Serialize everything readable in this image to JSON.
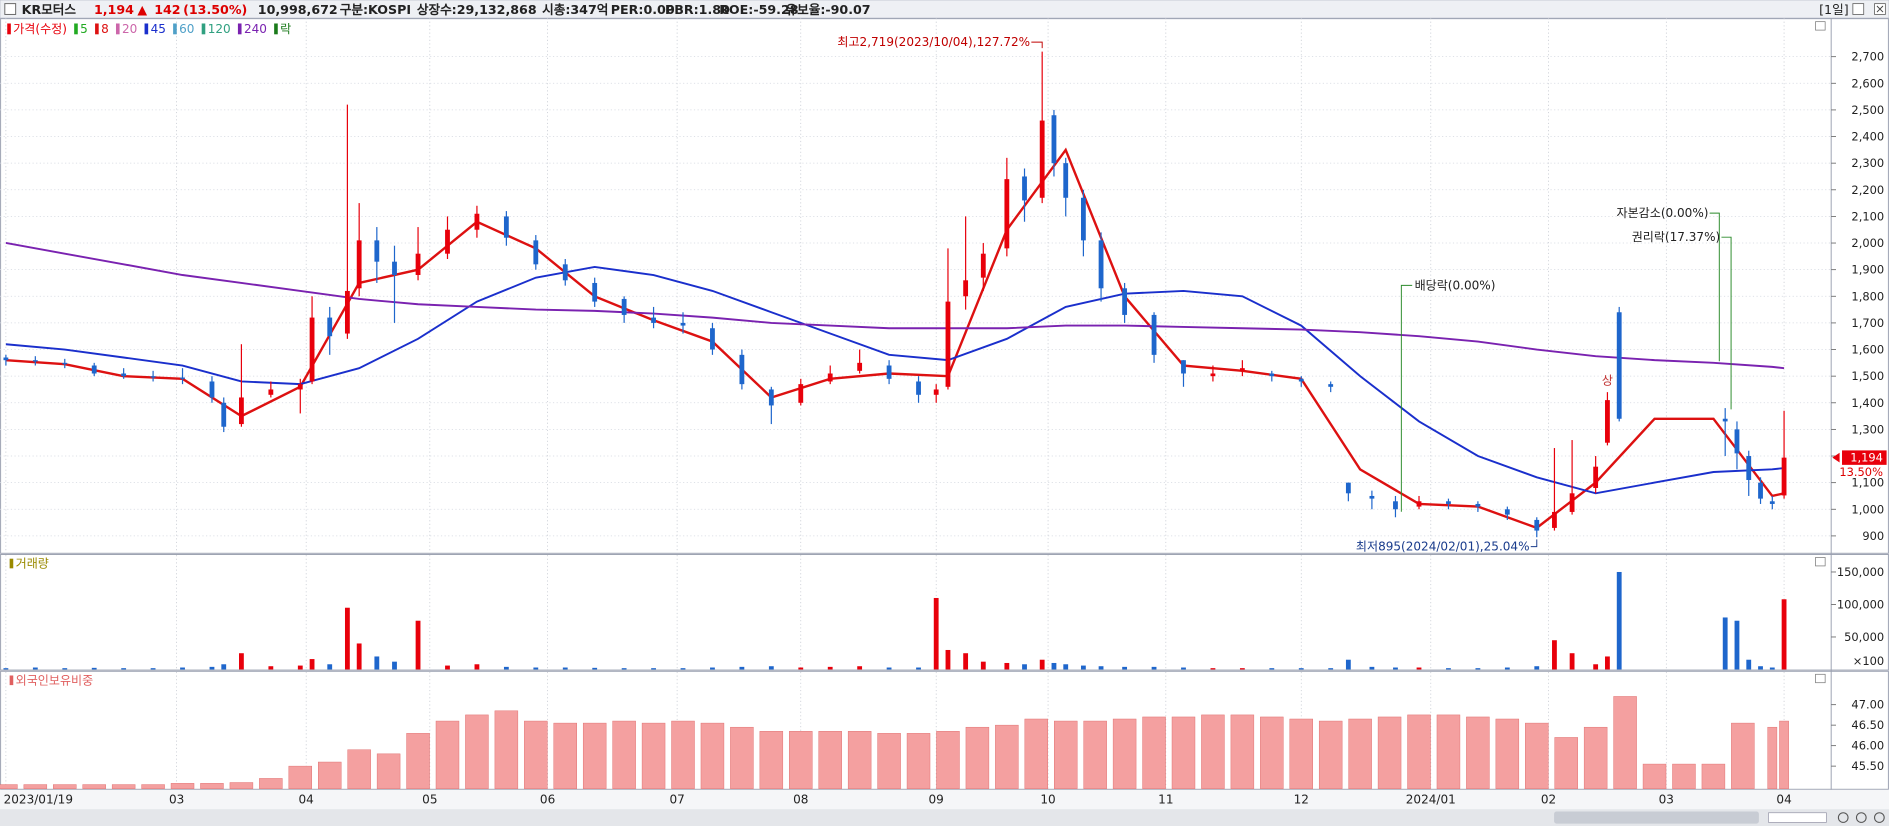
{
  "header": {
    "name": "KR모터스",
    "price": "1,194",
    "arrow": "▲",
    "change": "142",
    "change_pct": "(13.50%)",
    "volume": "10,998,672",
    "market": "구분:KOSPI",
    "shares": "상장수:29,132,868",
    "mcap": "시총:347억",
    "per": "PER:0.00",
    "pbr": "PBR:1.80",
    "roe": "ROE:-59.28",
    "reserve": "유보율:-90.07",
    "period": "[1일]"
  },
  "chart_data": [
    {
      "type": "candlestick",
      "name": "가격(수정)",
      "up_color": "#e8000b",
      "down_color": "#1e66cc",
      "x": [
        0,
        5,
        10,
        15,
        20,
        25,
        30,
        35,
        37,
        40,
        45,
        50,
        52,
        55,
        58,
        60,
        63,
        66,
        70,
        75,
        80,
        85,
        90,
        95,
        100,
        105,
        110,
        115,
        120,
        125,
        130,
        135,
        140,
        145,
        150,
        155,
        158,
        160,
        163,
        166,
        170,
        173,
        176,
        178,
        180,
        183,
        186,
        190,
        195,
        200,
        205,
        210,
        215,
        220,
        225,
        228,
        232,
        236,
        240,
        245,
        250,
        255,
        260,
        263,
        266,
        270,
        272,
        274,
        292,
        294,
        296,
        298,
        300,
        302
      ],
      "open": [
        1570,
        1560,
        1550,
        1540,
        1510,
        1500,
        1495,
        1480,
        1400,
        1320,
        1430,
        1450,
        1480,
        1720,
        1660,
        1830,
        2010,
        1930,
        1880,
        1960,
        2050,
        2100,
        2010,
        1920,
        1850,
        1790,
        1720,
        1700,
        1680,
        1580,
        1450,
        1400,
        1480,
        1520,
        1540,
        1480,
        1430,
        1460,
        1800,
        1870,
        1980,
        2250,
        2170,
        2480,
        2300,
        2170,
        2010,
        1830,
        1730,
        1560,
        1500,
        1520,
        1510,
        1490,
        1470,
        1100,
        1050,
        1030,
        1010,
        1030,
        1020,
        1000,
        960,
        930,
        990,
        1080,
        1250,
        1740,
        1340,
        1300,
        1200,
        1100,
        1030,
        1052
      ],
      "high": [
        1580,
        1575,
        1565,
        1550,
        1530,
        1520,
        1530,
        1500,
        1420,
        1620,
        1480,
        1490,
        1800,
        1760,
        2520,
        2150,
        2060,
        1990,
        2060,
        2100,
        2140,
        2120,
        2030,
        1940,
        1870,
        1800,
        1760,
        1740,
        1700,
        1600,
        1460,
        1490,
        1540,
        1600,
        1560,
        1500,
        1470,
        1980,
        2100,
        2000,
        2320,
        2280,
        2719,
        2500,
        2320,
        2200,
        2040,
        1850,
        1740,
        1560,
        1540,
        1560,
        1520,
        1500,
        1480,
        1100,
        1070,
        1050,
        1050,
        1040,
        1030,
        1010,
        970,
        1230,
        1260,
        1200,
        1440,
        1760,
        1380,
        1330,
        1220,
        1120,
        1050,
        1370
      ],
      "low": [
        1540,
        1540,
        1530,
        1500,
        1490,
        1480,
        1470,
        1400,
        1290,
        1310,
        1420,
        1360,
        1470,
        1580,
        1640,
        1800,
        1850,
        1700,
        1860,
        1940,
        2020,
        1990,
        1900,
        1840,
        1760,
        1700,
        1680,
        1660,
        1580,
        1450,
        1320,
        1390,
        1470,
        1510,
        1470,
        1400,
        1400,
        1450,
        1750,
        1820,
        1950,
        2080,
        2150,
        2250,
        2100,
        1950,
        1780,
        1700,
        1550,
        1460,
        1480,
        1500,
        1480,
        1460,
        1440,
        1030,
        1000,
        970,
        1000,
        1000,
        990,
        960,
        895,
        920,
        980,
        1060,
        1240,
        1330,
        1200,
        1150,
        1050,
        1020,
        1000,
        1040
      ],
      "close": [
        1560,
        1555,
        1545,
        1510,
        1500,
        1495,
        1490,
        1420,
        1310,
        1420,
        1450,
        1470,
        1720,
        1650,
        1820,
        2010,
        1930,
        1880,
        1960,
        2050,
        2110,
        2020,
        1920,
        1860,
        1780,
        1730,
        1700,
        1690,
        1600,
        1470,
        1390,
        1470,
        1510,
        1550,
        1490,
        1430,
        1450,
        1780,
        1860,
        1960,
        2240,
        2160,
        2460,
        2300,
        2170,
        2010,
        1830,
        1730,
        1580,
        1510,
        1510,
        1530,
        1500,
        1480,
        1460,
        1060,
        1040,
        1000,
        1030,
        1020,
        1010,
        980,
        920,
        990,
        1060,
        1160,
        1410,
        1340,
        1330,
        1210,
        1110,
        1040,
        1020,
        1194
      ],
      "series": [
        {
          "name": "8",
          "color": "#dd1111",
          "x": [
            0,
            10,
            20,
            30,
            40,
            50,
            60,
            70,
            80,
            90,
            100,
            110,
            120,
            130,
            140,
            150,
            160,
            170,
            180,
            190,
            200,
            210,
            220,
            230,
            240,
            250,
            260,
            270,
            280,
            290,
            300,
            302
          ],
          "values": [
            1560,
            1545,
            1500,
            1490,
            1350,
            1460,
            1850,
            1900,
            2080,
            1980,
            1800,
            1710,
            1630,
            1420,
            1490,
            1510,
            1500,
            2050,
            2350,
            1800,
            1540,
            1520,
            1490,
            1150,
            1020,
            1010,
            930,
            1100,
            1340,
            1340,
            1050,
            1060
          ]
        },
        {
          "name": "45",
          "color": "#1a2fcc",
          "x": [
            0,
            10,
            20,
            30,
            40,
            50,
            60,
            70,
            80,
            90,
            100,
            110,
            120,
            130,
            140,
            150,
            160,
            170,
            180,
            190,
            200,
            210,
            220,
            230,
            240,
            250,
            260,
            270,
            280,
            290,
            300,
            302
          ],
          "values": [
            1620,
            1600,
            1570,
            1540,
            1480,
            1470,
            1530,
            1640,
            1780,
            1870,
            1910,
            1880,
            1820,
            1740,
            1660,
            1580,
            1560,
            1640,
            1760,
            1810,
            1820,
            1800,
            1690,
            1500,
            1330,
            1200,
            1120,
            1060,
            1100,
            1140,
            1150,
            1155
          ]
        },
        {
          "name": "240",
          "color": "#7a22b0",
          "x": [
            0,
            10,
            20,
            30,
            40,
            50,
            60,
            70,
            80,
            90,
            100,
            110,
            120,
            130,
            140,
            150,
            160,
            170,
            180,
            190,
            200,
            210,
            220,
            230,
            240,
            250,
            260,
            270,
            280,
            290,
            300,
            302
          ],
          "values": [
            2000,
            1960,
            1920,
            1880,
            1850,
            1820,
            1790,
            1770,
            1760,
            1750,
            1745,
            1735,
            1720,
            1700,
            1690,
            1680,
            1680,
            1680,
            1690,
            1690,
            1685,
            1680,
            1675,
            1665,
            1650,
            1630,
            1600,
            1575,
            1560,
            1550,
            1535,
            1530
          ]
        }
      ],
      "legend_extra": [
        {
          "name": "5",
          "color": "#22aa22"
        },
        {
          "name": "20",
          "color": "#cc66aa"
        },
        {
          "name": "60",
          "color": "#4fa0c8"
        },
        {
          "name": "120",
          "color": "#30a080"
        }
      ],
      "event_legend": {
        "name": "락",
        "color": "#1a7a1a"
      },
      "xlim": [
        -1,
        310
      ],
      "xticks": [
        {
          "value": 0,
          "label": "2023/01/19"
        },
        {
          "value": 29,
          "label": "03"
        },
        {
          "value": 51,
          "label": "04"
        },
        {
          "value": 72,
          "label": "05"
        },
        {
          "value": 92,
          "label": "06"
        },
        {
          "value": 114,
          "label": "07"
        },
        {
          "value": 135,
          "label": "08"
        },
        {
          "value": 158,
          "label": "09"
        },
        {
          "value": 177,
          "label": "10"
        },
        {
          "value": 197,
          "label": "11"
        },
        {
          "value": 220,
          "label": "12"
        },
        {
          "value": 242,
          "label": "2024/01"
        },
        {
          "value": 262,
          "label": "02"
        },
        {
          "value": 282,
          "label": "03"
        },
        {
          "value": 302,
          "label": "04"
        }
      ],
      "ylim": [
        837,
        2845
      ],
      "yticks": [
        900,
        {
          "value": 1000,
          "label": "1,000"
        },
        {
          "value": 1100,
          "label": "1,100"
        },
        {
          "value": 1200,
          "label": "1,200"
        },
        {
          "value": 1300,
          "label": "1,300"
        },
        {
          "value": 1400,
          "label": "1,400"
        },
        {
          "value": 1500,
          "label": "1,500"
        },
        {
          "value": 1600,
          "label": "1,600"
        },
        {
          "value": 1700,
          "label": "1,700"
        },
        {
          "value": 1800,
          "label": "1,800"
        },
        {
          "value": 1900,
          "label": "1,900"
        },
        {
          "value": 2000,
          "label": "2,000"
        },
        {
          "value": 2100,
          "label": "2,100"
        },
        {
          "value": 2200,
          "label": "2,200"
        },
        {
          "value": 2300,
          "label": "2,300"
        },
        {
          "value": 2400,
          "label": "2,400"
        },
        {
          "value": 2500,
          "label": "2,500"
        },
        {
          "value": 2600,
          "label": "2,600"
        },
        {
          "value": 2700,
          "label": "2,700"
        }
      ],
      "grid": true,
      "annotations": [
        {
          "text": "최고2,719(2023/10/04),127.72%",
          "x": 176
        },
        {
          "text": "최저895(2024/02/01),25.04%",
          "x": 260
        },
        {
          "text": "배당락(0.00%)",
          "x": 237
        },
        {
          "text": "자본감소(0.00%)",
          "x": 291
        },
        {
          "text": "권리락(17.37%)",
          "x": 293
        },
        {
          "text": "상",
          "x": 272
        }
      ],
      "last_label": "1,194",
      "last_change": "13.50%"
    },
    {
      "type": "bar",
      "title": "거래량",
      "title_color": "#9a8a00",
      "up_color": "#e8000b",
      "down_color": "#1e66cc",
      "unit": "×100",
      "x": [
        0,
        5,
        10,
        15,
        20,
        25,
        30,
        35,
        37,
        40,
        45,
        50,
        52,
        55,
        58,
        60,
        63,
        66,
        70,
        75,
        80,
        85,
        90,
        95,
        100,
        105,
        110,
        115,
        120,
        125,
        130,
        135,
        140,
        145,
        150,
        155,
        158,
        160,
        163,
        166,
        170,
        173,
        176,
        178,
        180,
        183,
        186,
        190,
        195,
        200,
        205,
        210,
        215,
        220,
        225,
        228,
        232,
        236,
        240,
        245,
        250,
        255,
        260,
        263,
        266,
        270,
        272,
        274,
        292,
        294,
        296,
        298,
        300,
        302
      ],
      "values": [
        2000,
        3000,
        2000,
        2500,
        2000,
        2000,
        3000,
        4000,
        8000,
        25000,
        5000,
        6000,
        16000,
        8000,
        95000,
        40000,
        20000,
        12000,
        75000,
        6000,
        8000,
        4000,
        3000,
        3000,
        2500,
        2000,
        2000,
        2000,
        3000,
        4000,
        5000,
        3000,
        4000,
        5000,
        3000,
        3000,
        110000,
        30000,
        25000,
        12000,
        10000,
        8000,
        15000,
        10000,
        8000,
        6000,
        5000,
        4000,
        4000,
        3000,
        2000,
        2000,
        2000,
        2000,
        2000,
        15000,
        4000,
        3000,
        3000,
        2000,
        2000,
        3000,
        5000,
        45000,
        25000,
        8000,
        20000,
        150000,
        80000,
        75000,
        15000,
        5000,
        3000,
        108000
      ],
      "xlim": [
        -1,
        310
      ],
      "ylim": [
        0,
        176000
      ],
      "yticks": [
        {
          "value": 50000,
          "label": "50,000"
        },
        {
          "value": 100000,
          "label": "100,000"
        },
        {
          "value": 150000,
          "label": "150,000"
        }
      ]
    },
    {
      "type": "bar",
      "title": "외국인보유비중",
      "title_color": "#e06060",
      "color": "#f4a0a0",
      "edge_color": "#e07070",
      "x": [
        0,
        5,
        10,
        15,
        20,
        25,
        30,
        35,
        40,
        45,
        50,
        55,
        60,
        65,
        70,
        75,
        80,
        85,
        90,
        95,
        100,
        105,
        110,
        115,
        120,
        125,
        130,
        135,
        140,
        145,
        150,
        155,
        160,
        165,
        170,
        175,
        180,
        185,
        190,
        195,
        200,
        205,
        210,
        215,
        220,
        225,
        230,
        235,
        240,
        245,
        250,
        255,
        260,
        265,
        270,
        275,
        280,
        285,
        290,
        295,
        300,
        302
      ],
      "values": [
        45.05,
        45.05,
        45.05,
        45.05,
        45.05,
        45.05,
        45.08,
        45.08,
        45.1,
        45.2,
        45.5,
        45.6,
        45.9,
        45.8,
        46.3,
        46.6,
        46.75,
        46.85,
        46.6,
        46.55,
        46.55,
        46.6,
        46.55,
        46.6,
        46.55,
        46.45,
        46.35,
        46.35,
        46.35,
        46.35,
        46.3,
        46.3,
        46.35,
        46.45,
        46.5,
        46.65,
        46.6,
        46.6,
        46.65,
        46.7,
        46.7,
        46.75,
        46.75,
        46.7,
        46.65,
        46.6,
        46.65,
        46.7,
        46.75,
        46.75,
        46.7,
        46.65,
        46.55,
        46.2,
        46.45,
        47.2,
        45.55,
        45.55,
        45.55,
        46.55,
        46.45,
        46.6
      ],
      "xlim": [
        -1,
        310
      ],
      "ylim": [
        44.95,
        47.8
      ],
      "yticks": [
        {
          "value": 45.5,
          "label": "45.50"
        },
        {
          "value": 46,
          "label": "46.00"
        },
        {
          "value": 46.5,
          "label": "46.50"
        },
        {
          "value": 47,
          "label": "47.00"
        }
      ]
    }
  ]
}
